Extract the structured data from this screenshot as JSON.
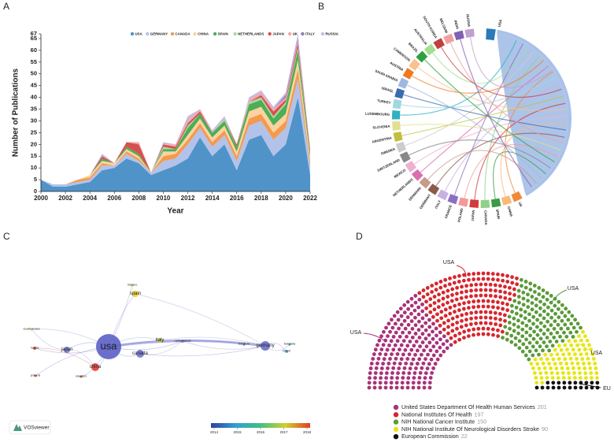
{
  "chart_data": [
    {
      "type": "area",
      "label": "A",
      "xlabel": "Year",
      "ylabel": "Number of Publications",
      "stacked": true,
      "x": [
        2000,
        2001,
        2002,
        2003,
        2004,
        2005,
        2006,
        2007,
        2008,
        2009,
        2010,
        2011,
        2012,
        2013,
        2014,
        2015,
        2016,
        2017,
        2018,
        2019,
        2020,
        2021,
        2022
      ],
      "xlim": [
        2000,
        2022
      ],
      "xticks": [
        2000,
        2002,
        2004,
        2006,
        2008,
        2010,
        2012,
        2014,
        2016,
        2018,
        2020,
        2022
      ],
      "ylim": [
        0,
        67
      ],
      "yticks": [
        0,
        5,
        10,
        15,
        20,
        25,
        30,
        35,
        40,
        45,
        50,
        55,
        60,
        65,
        67
      ],
      "series": [
        {
          "name": "USA",
          "color": "#4f93c9",
          "values": [
            5,
            2,
            2,
            3,
            4,
            9,
            10,
            14,
            12,
            7,
            9,
            11,
            14,
            23,
            15,
            20,
            9,
            22,
            24,
            15,
            20,
            40,
            7
          ]
        },
        {
          "name": "GERMANY",
          "color": "#b3c2e8",
          "values": [
            0,
            1,
            1,
            1,
            1,
            2,
            1,
            2,
            1,
            1,
            4,
            3,
            6,
            4,
            4,
            4,
            4,
            6,
            6,
            7,
            7,
            8,
            4
          ]
        },
        {
          "name": "CANADA",
          "color": "#f39a4f",
          "values": [
            0,
            0,
            0,
            1,
            1,
            1,
            0,
            1,
            1,
            0,
            2,
            2,
            2,
            2,
            2,
            2,
            2,
            3,
            3,
            3,
            3,
            4,
            2
          ]
        },
        {
          "name": "CHINA",
          "color": "#fbd3a0",
          "values": [
            0,
            0,
            0,
            0,
            1,
            1,
            1,
            1,
            1,
            0,
            2,
            1,
            2,
            2,
            2,
            2,
            2,
            3,
            3,
            3,
            3,
            4,
            2
          ]
        },
        {
          "name": "SPAIN",
          "color": "#4cae55",
          "values": [
            0,
            0,
            0,
            0,
            0,
            1,
            0,
            1,
            1,
            0,
            1,
            1,
            3,
            2,
            2,
            2,
            2,
            3,
            3,
            3,
            4,
            4,
            2
          ]
        },
        {
          "name": "NETHERLANDS",
          "color": "#a9d9a1",
          "values": [
            0,
            0,
            0,
            0,
            0,
            0,
            0,
            0,
            0,
            0,
            1,
            0,
            1,
            0,
            0,
            1,
            0,
            1,
            1,
            1,
            1,
            1,
            0
          ]
        },
        {
          "name": "JAPAN",
          "color": "#d65050",
          "values": [
            0,
            0,
            0,
            0,
            0,
            1,
            0,
            2,
            4,
            0,
            1,
            1,
            1,
            1,
            0,
            0,
            1,
            0,
            1,
            2,
            1,
            2,
            1
          ]
        },
        {
          "name": "UK",
          "color": "#f3a7a5",
          "values": [
            0,
            0,
            0,
            0,
            0,
            0,
            0,
            0,
            1,
            0,
            0,
            1,
            1,
            1,
            0,
            0,
            0,
            1,
            1,
            1,
            1,
            1,
            0
          ]
        },
        {
          "name": "ITALY",
          "color": "#8d7cc2",
          "values": [
            0,
            0,
            0,
            0,
            0,
            0,
            0,
            0,
            0,
            0,
            0,
            0,
            0,
            0,
            0,
            0,
            0,
            0,
            0,
            0,
            1,
            1,
            0
          ]
        },
        {
          "name": "RUSSIA",
          "color": "#cbb6e0",
          "values": [
            0,
            0,
            0,
            0,
            0,
            1,
            0,
            0,
            0,
            0,
            1,
            0,
            2,
            0,
            1,
            1,
            0,
            1,
            1,
            1,
            1,
            2,
            0
          ]
        }
      ]
    },
    {
      "type": "chord",
      "label": "B",
      "nodes": [
        {
          "label": "USA",
          "color": "#a9c1e8"
        },
        {
          "label": "UK",
          "color": "#f08a3a"
        },
        {
          "label": "CHINA",
          "color": "#f9b97a"
        },
        {
          "label": "SPAIN",
          "color": "#3a9a45"
        },
        {
          "label": "CANADA",
          "color": "#8fd08a"
        },
        {
          "label": "JAPAN",
          "color": "#d43a3a"
        },
        {
          "label": "POLAND",
          "color": "#f29a9a"
        },
        {
          "label": "FRANCE",
          "color": "#8b6fc0"
        },
        {
          "label": "ITALY",
          "color": "#c8b0e0"
        },
        {
          "label": "GERMANY",
          "color": "#8b5a4a"
        },
        {
          "label": "DENMARK",
          "color": "#c89a8a"
        },
        {
          "label": "NETHERLANDS",
          "color": "#d870b0"
        },
        {
          "label": "MEXICO",
          "color": "#f0b0d0"
        },
        {
          "label": "SWITZERLAND",
          "color": "#888888"
        },
        {
          "label": "SWEDEN",
          "color": "#cccccc"
        },
        {
          "label": "ARGENTINA",
          "color": "#c0c040"
        },
        {
          "label": "SLOVENIA",
          "color": "#e0e090"
        },
        {
          "label": "LUXEMBOURG",
          "color": "#30b0c0"
        },
        {
          "label": "TURKEY",
          "color": "#a0d8e0"
        },
        {
          "label": "ISRAEL",
          "color": "#3a6ab0"
        },
        {
          "label": "SAUDI ARABIA",
          "color": "#a0b8e0"
        },
        {
          "label": "AUSTRIA",
          "color": "#f07a20"
        },
        {
          "label": "CAMEROON",
          "color": "#f9c090"
        },
        {
          "label": "BRAZIL",
          "color": "#30a040"
        },
        {
          "label": "AUSTRALIA",
          "color": "#a0e090"
        },
        {
          "label": "SOUTH KOREA",
          "color": "#c04040"
        },
        {
          "label": "BELGIUM",
          "color": "#f0a0a0"
        },
        {
          "label": "INDIA",
          "color": "#8060b0"
        },
        {
          "label": "RUSSIA",
          "color": "#c0a0d0"
        }
      ]
    },
    {
      "type": "network",
      "label": "C",
      "logo": "VOSviewer",
      "nodes": [
        {
          "label": "usa",
          "color": "#5b5fc7"
        },
        {
          "label": "germany",
          "color": "#6a6fc9"
        },
        {
          "label": "canada",
          "color": "#6e72c8"
        },
        {
          "label": "japan",
          "color": "#7079cb"
        },
        {
          "label": "china",
          "color": "#e0413a"
        },
        {
          "label": "italy",
          "color": "#c9c93a"
        },
        {
          "label": "netherlands",
          "color": "#8080c8"
        },
        {
          "label": "spain",
          "color": "#f0d020"
        },
        {
          "label": "russia",
          "color": "#d64a3a"
        },
        {
          "label": "poland",
          "color": "#d64a3a"
        },
        {
          "label": "sweden",
          "color": "#d64a3a"
        },
        {
          "label": "south korea",
          "color": "#c8c060"
        },
        {
          "label": "mexico",
          "color": "#e8c830"
        },
        {
          "label": "belgium",
          "color": "#7080c8"
        },
        {
          "label": "bulgaria",
          "color": "#50b0d0"
        },
        {
          "label": "brazil",
          "color": "#50b0d0"
        }
      ],
      "colorbar": {
        "lim": [
          2014,
          2018
        ],
        "ticks": [
          2014,
          2015,
          2016,
          2017,
          2018
        ],
        "colors": [
          "#3040a0",
          "#30a0d0",
          "#40c080",
          "#d0d030",
          "#e04020"
        ]
      }
    },
    {
      "type": "parliament",
      "label": "D",
      "series": [
        {
          "name": "United States Department Of Health Human Services",
          "color": "#a83279",
          "value": 201
        },
        {
          "name": "National Institutes Of Health",
          "color": "#d7262e",
          "value": 197
        },
        {
          "name": "NIH National Cancer Institute",
          "color": "#5a9a3a",
          "value": 150
        },
        {
          "name": "NIH National Institute Of Neurological Disorders Stroke",
          "color": "#e6e616",
          "value": 90
        },
        {
          "name": "European Commission",
          "color": "#111111",
          "value": 22
        }
      ],
      "annotations": [
        "USA",
        "USA",
        "USA",
        "USA",
        "EU"
      ]
    }
  ]
}
